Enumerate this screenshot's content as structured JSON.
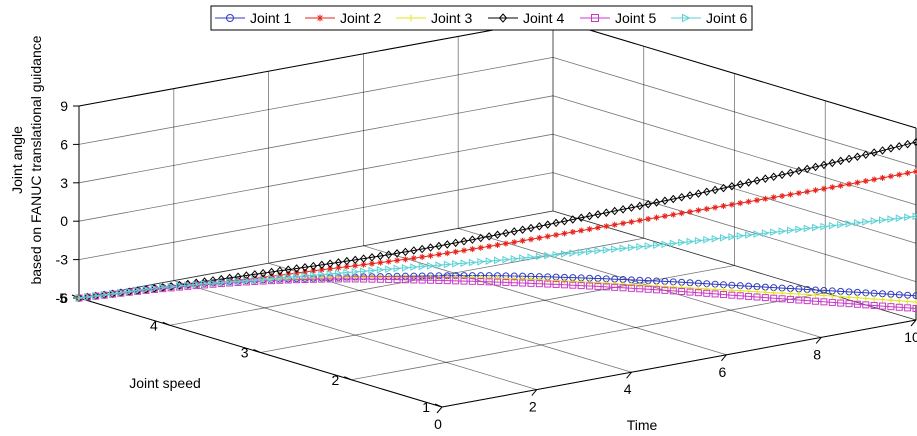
{
  "chart_data": {
    "type": "line",
    "projection": "3d",
    "title": "",
    "xlabel": "Time",
    "ylabel": "Joint speed",
    "zlabel": [
      "Joint angle",
      "based on FANUC translational guidance"
    ],
    "xlim": [
      0,
      10
    ],
    "ylim": [
      1,
      5
    ],
    "zlim": [
      -6,
      9
    ],
    "xticks": [
      "0",
      "2",
      "4",
      "6",
      "8",
      "10"
    ],
    "yticks": [
      "1",
      "2",
      "3",
      "4",
      "5"
    ],
    "zticks": [
      "-6",
      "-3",
      "0",
      "3",
      "6",
      "9"
    ],
    "grid": true,
    "legend": "top",
    "series": [
      {
        "name": "Joint 1",
        "color": "#2e3bbf",
        "marker": "circle",
        "x": [
          0,
          1,
          2,
          3,
          4,
          5,
          6,
          7,
          8,
          9,
          10
        ],
        "y": [
          5,
          4.6,
          4.2,
          3.8,
          3.4,
          3.0,
          2.6,
          2.2,
          1.8,
          1.4,
          1.0
        ],
        "z": [
          -6.0,
          -5.0,
          -4.3,
          -3.9,
          -3.6,
          -3.4,
          -3.4,
          -3.5,
          -3.7,
          -3.9,
          -4.1
        ]
      },
      {
        "name": "Joint 2",
        "color": "#e8231b",
        "marker": "star",
        "x": [
          0,
          1,
          2,
          3,
          4,
          5,
          6,
          7,
          8,
          9,
          10
        ],
        "y": [
          5,
          4.6,
          4.2,
          3.8,
          3.4,
          3.0,
          2.6,
          2.2,
          1.8,
          1.4,
          1.0
        ],
        "z": [
          -6.0,
          -5.1,
          -4.2,
          -3.2,
          -2.2,
          -1.0,
          0.3,
          1.6,
          2.9,
          4.2,
          5.6
        ]
      },
      {
        "name": "Joint 3",
        "color": "#e6e61a",
        "marker": "plus",
        "x": [
          0,
          1,
          2,
          3,
          4,
          5,
          6,
          7,
          8,
          9,
          10
        ],
        "y": [
          5,
          4.6,
          4.2,
          3.8,
          3.4,
          3.0,
          2.6,
          2.2,
          1.8,
          1.4,
          1.0
        ],
        "z": [
          -6.0,
          -5.0,
          -4.3,
          -3.9,
          -3.7,
          -3.6,
          -3.7,
          -3.9,
          -4.1,
          -4.3,
          -4.6
        ]
      },
      {
        "name": "Joint 4",
        "color": "#000000",
        "marker": "diamond",
        "x": [
          0,
          1,
          2,
          3,
          4,
          5,
          6,
          7,
          8,
          9,
          10
        ],
        "y": [
          5,
          4.6,
          4.2,
          3.8,
          3.4,
          3.0,
          2.6,
          2.2,
          1.8,
          1.4,
          1.0
        ],
        "z": [
          -6.0,
          -5.0,
          -3.9,
          -2.8,
          -1.6,
          -0.2,
          1.3,
          2.8,
          4.4,
          6.1,
          7.9
        ]
      },
      {
        "name": "Joint 5",
        "color": "#c93ac9",
        "marker": "square",
        "x": [
          0,
          1,
          2,
          3,
          4,
          5,
          6,
          7,
          8,
          9,
          10
        ],
        "y": [
          5,
          4.6,
          4.2,
          3.8,
          3.4,
          3.0,
          2.6,
          2.2,
          1.8,
          1.4,
          1.0
        ],
        "z": [
          -6.0,
          -5.1,
          -4.4,
          -4.0,
          -3.9,
          -3.9,
          -4.0,
          -4.2,
          -4.5,
          -4.8,
          -5.1
        ]
      },
      {
        "name": "Joint 6",
        "color": "#5ad2d6",
        "marker": "triangle-right",
        "x": [
          0,
          1,
          2,
          3,
          4,
          5,
          6,
          7,
          8,
          9,
          10
        ],
        "y": [
          5,
          4.6,
          4.2,
          3.8,
          3.4,
          3.0,
          2.6,
          2.2,
          1.8,
          1.4,
          1.0
        ],
        "z": [
          -6.0,
          -5.0,
          -4.3,
          -3.6,
          -2.9,
          -2.2,
          -1.4,
          -0.6,
          0.3,
          1.2,
          2.1
        ]
      }
    ]
  }
}
